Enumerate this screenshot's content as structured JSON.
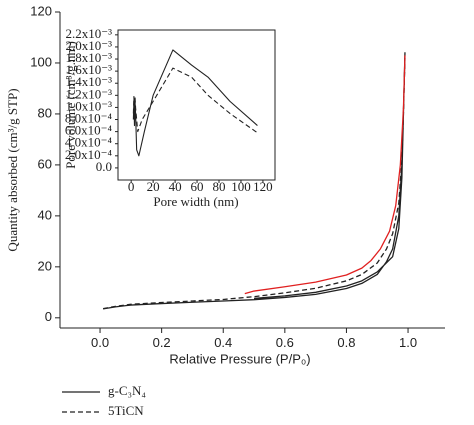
{
  "chart_data": [
    {
      "type": "line",
      "xlabel": "Relative Pressure (P/P₀)",
      "ylabel": "Quantity absorbed (cm³/g STP)",
      "xlim": [
        -0.13,
        1.12
      ],
      "ylim": [
        -4,
        120
      ],
      "xticks": [
        {
          "value": 0,
          "label": "0.0"
        },
        0.2,
        0.4,
        0.6,
        0.8,
        {
          "value": 1,
          "label": "1.0"
        }
      ],
      "yticks": [
        0,
        20,
        40,
        60,
        80,
        100,
        120
      ],
      "series": [
        {
          "name": "g-C₃N₄",
          "color": "#222222",
          "style": "solid",
          "x": [
            0.01,
            0.05,
            0.1,
            0.2,
            0.3,
            0.4,
            0.5,
            0.6,
            0.7,
            0.8,
            0.85,
            0.9,
            0.93,
            0.95,
            0.97,
            0.98,
            0.985,
            0.99,
            0.985,
            0.98,
            0.97,
            0.95,
            0.9,
            0.85,
            0.8,
            0.7,
            0.6,
            0.5
          ],
          "values": [
            3.5,
            4.3,
            5,
            5.6,
            6.1,
            6.6,
            7.1,
            8,
            9.2,
            11.5,
            13.5,
            17,
            22,
            27,
            40,
            60,
            80,
            104,
            80,
            55,
            35,
            24,
            18,
            14.5,
            12.5,
            10,
            8.6,
            7.6
          ]
        },
        {
          "name": "5TiCN",
          "color": "#222222",
          "style": "dashed",
          "x": [
            0.01,
            0.05,
            0.1,
            0.2,
            0.3,
            0.4,
            0.5,
            0.6,
            0.7,
            0.8,
            0.85,
            0.9,
            0.93,
            0.95,
            0.97,
            0.98,
            0.985,
            0.99
          ],
          "values": [
            3.6,
            4.5,
            5.3,
            6,
            6.6,
            7.2,
            8.3,
            9.8,
            11.6,
            14.5,
            17,
            21.5,
            27,
            33,
            45,
            62,
            80,
            102
          ]
        },
        {
          "color": "#e02020",
          "style": "solid",
          "x": [
            0.47,
            0.5,
            0.6,
            0.7,
            0.8,
            0.85,
            0.88,
            0.91,
            0.94,
            0.96,
            0.975,
            0.985,
            0.99
          ],
          "values": [
            9.5,
            10.5,
            12.2,
            14,
            16.8,
            19.5,
            22.5,
            27,
            34,
            44,
            60,
            82,
            103
          ]
        }
      ]
    },
    {
      "type": "line",
      "xlabel": "Pore width (nm)",
      "ylabel": "Pore volume (cm³/g.nm)",
      "xlim": [
        -12,
        131
      ],
      "ylim": [
        -0.0002,
        0.00228
      ],
      "xticks": [
        0,
        20,
        40,
        60,
        80,
        100,
        120
      ],
      "yticks": [
        {
          "value": 0,
          "label": "0.0"
        },
        {
          "value": 0.0002,
          "label": "2.0x10⁻⁴"
        },
        {
          "value": 0.0004,
          "label": "4.0x10⁻⁴"
        },
        {
          "value": 0.0006,
          "label": "6.0x10⁻⁴"
        },
        {
          "value": 0.0008,
          "label": "8.0x10⁻⁴"
        },
        {
          "value": 0.001,
          "label": "1.0x10⁻³"
        },
        {
          "value": 0.0012,
          "label": "1.2x10⁻³"
        },
        {
          "value": 0.0014,
          "label": "1.4x10⁻³"
        },
        {
          "value": 0.0016,
          "label": "1.6x10⁻³"
        },
        {
          "value": 0.0018,
          "label": "1.8x10⁻³"
        },
        {
          "value": 0.002,
          "label": "2.0x10⁻³"
        },
        {
          "value": 0.0022,
          "label": "2.2x10⁻³"
        }
      ],
      "series": [
        {
          "color": "#222222",
          "style": "solid",
          "x": [
            2,
            2.5,
            3,
            3.5,
            4,
            5,
            7,
            12,
            20,
            38,
            55,
            70,
            90,
            115
          ],
          "values": [
            0.0008,
            0.0011,
            0.0007,
            0.0011,
            0.0009,
            0.0003,
            0.0002,
            0.0006,
            0.0012,
            0.00195,
            0.0017,
            0.0015,
            0.0011,
            0.0007
          ]
        },
        {
          "color": "#222222",
          "style": "dashed",
          "x": [
            2,
            2.5,
            3,
            3.5,
            4,
            6,
            10,
            20,
            38,
            55,
            70,
            90,
            115
          ],
          "values": [
            0.0009,
            0.00118,
            0.0008,
            0.00118,
            0.001,
            0.0006,
            0.0008,
            0.0011,
            0.00165,
            0.0015,
            0.0012,
            0.0009,
            0.00058
          ]
        }
      ]
    }
  ]
}
